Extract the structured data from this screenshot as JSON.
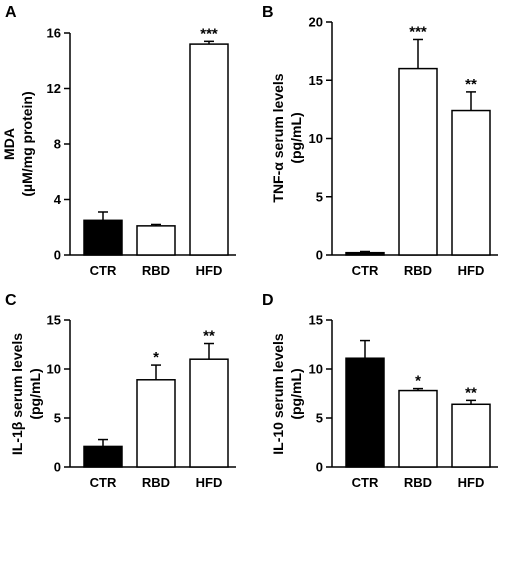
{
  "chart_data": [
    {
      "panel": "A",
      "type": "bar",
      "ylabel_lines": [
        "MDA",
        "(µM/mg protein)"
      ],
      "categories": [
        "CTR",
        "RBD",
        "HFD"
      ],
      "values": [
        2.5,
        2.1,
        15.2
      ],
      "errors": [
        0.6,
        0.1,
        0.2
      ],
      "significance": [
        "",
        "",
        "***"
      ],
      "fills": [
        "#000000",
        "#ffffff",
        "#ffffff"
      ],
      "ylim": [
        0,
        16
      ],
      "yticks": [
        0,
        4,
        8,
        12,
        16
      ]
    },
    {
      "panel": "B",
      "type": "bar",
      "ylabel_lines": [
        "TNF-α serum levels",
        "(pg/mL)"
      ],
      "categories": [
        "CTR",
        "RBD",
        "HFD"
      ],
      "values": [
        0.2,
        16.0,
        12.4
      ],
      "errors": [
        0.1,
        2.5,
        1.6
      ],
      "significance": [
        "",
        "***",
        "**"
      ],
      "fills": [
        "#000000",
        "#ffffff",
        "#ffffff"
      ],
      "ylim": [
        0,
        20
      ],
      "yticks": [
        0,
        5,
        10,
        15,
        20
      ]
    },
    {
      "panel": "C",
      "type": "bar",
      "ylabel_lines": [
        "IL-1β serum levels",
        "(pg/mL)"
      ],
      "categories": [
        "CTR",
        "RBD",
        "HFD"
      ],
      "values": [
        2.1,
        8.9,
        11.0
      ],
      "errors": [
        0.7,
        1.5,
        1.6
      ],
      "significance": [
        "",
        "*",
        "**"
      ],
      "fills": [
        "#000000",
        "#ffffff",
        "#ffffff"
      ],
      "ylim": [
        0,
        15
      ],
      "yticks": [
        0,
        5,
        10,
        15
      ]
    },
    {
      "panel": "D",
      "type": "bar",
      "ylabel_lines": [
        "IL-10 serum levels",
        "(pg/mL)"
      ],
      "categories": [
        "CTR",
        "RBD",
        "HFD"
      ],
      "values": [
        11.1,
        7.8,
        6.4
      ],
      "errors": [
        1.8,
        0.2,
        0.4
      ],
      "significance": [
        "",
        "*",
        "**"
      ],
      "fills": [
        "#000000",
        "#ffffff",
        "#ffffff"
      ],
      "ylim": [
        0,
        15
      ],
      "yticks": [
        0,
        5,
        10,
        15
      ]
    }
  ]
}
